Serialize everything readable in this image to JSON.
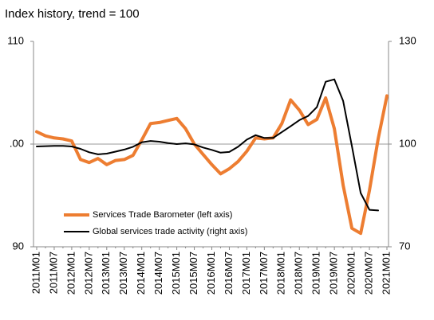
{
  "chart_data": {
    "type": "line",
    "title": "Index history, trend = 100",
    "categories": [
      "2011M01",
      null,
      "2011M07",
      null,
      "2012M01",
      null,
      "2012M07",
      null,
      "2013M01",
      null,
      "2013M07",
      null,
      "2014M01",
      null,
      "2014M07",
      null,
      "2015M01",
      null,
      "2015M07",
      null,
      "2016M01",
      null,
      "2016M07",
      null,
      "2017M01",
      null,
      "2017M07",
      null,
      "2018M01",
      null,
      "2018M07",
      null,
      "2019M01",
      null,
      "2019M07",
      null,
      "2020M01",
      null,
      "2020M07",
      null,
      "2021M01"
    ],
    "series": [
      {
        "name": "Services Trade Barometer (left axis)",
        "color": "#ed7d31",
        "axis": "y",
        "values": [
          101.2,
          100.8,
          100.6,
          100.5,
          100.3,
          98.5,
          98.2,
          98.6,
          98.0,
          98.4,
          98.5,
          98.9,
          100.4,
          102.0,
          102.1,
          102.3,
          102.5,
          101.5,
          100.0,
          99.0,
          98.0,
          97.1,
          97.6,
          98.3,
          99.3,
          100.6,
          100.5,
          100.6,
          102.0,
          104.3,
          103.3,
          101.9,
          102.4,
          104.5,
          101.5,
          96.0,
          91.8,
          91.3,
          95.5,
          100.5,
          104.7
        ]
      },
      {
        "name": "Global services trade activity (right axis)",
        "color": "#000000",
        "axis": "y2",
        "values": [
          99.3,
          99.4,
          99.5,
          99.5,
          99.3,
          98.6,
          97.6,
          97.0,
          97.2,
          97.8,
          98.4,
          99.2,
          100.5,
          100.9,
          100.7,
          100.3,
          100.0,
          100.2,
          99.9,
          99.0,
          98.3,
          97.5,
          97.7,
          99.2,
          101.3,
          102.6,
          101.8,
          101.8,
          103.5,
          105.2,
          107.0,
          108.2,
          110.8,
          118.2,
          118.9,
          112.6,
          99.4,
          85.7,
          80.8,
          80.6,
          null
        ]
      }
    ],
    "ylim": [
      90,
      110
    ],
    "yticks": [
      90,
      {
        "value": 100,
        "label": ".00"
      },
      110
    ],
    "y2lim": [
      70,
      130
    ],
    "y2ticks": [
      70,
      100,
      130
    ],
    "legend_position": "lower left"
  }
}
